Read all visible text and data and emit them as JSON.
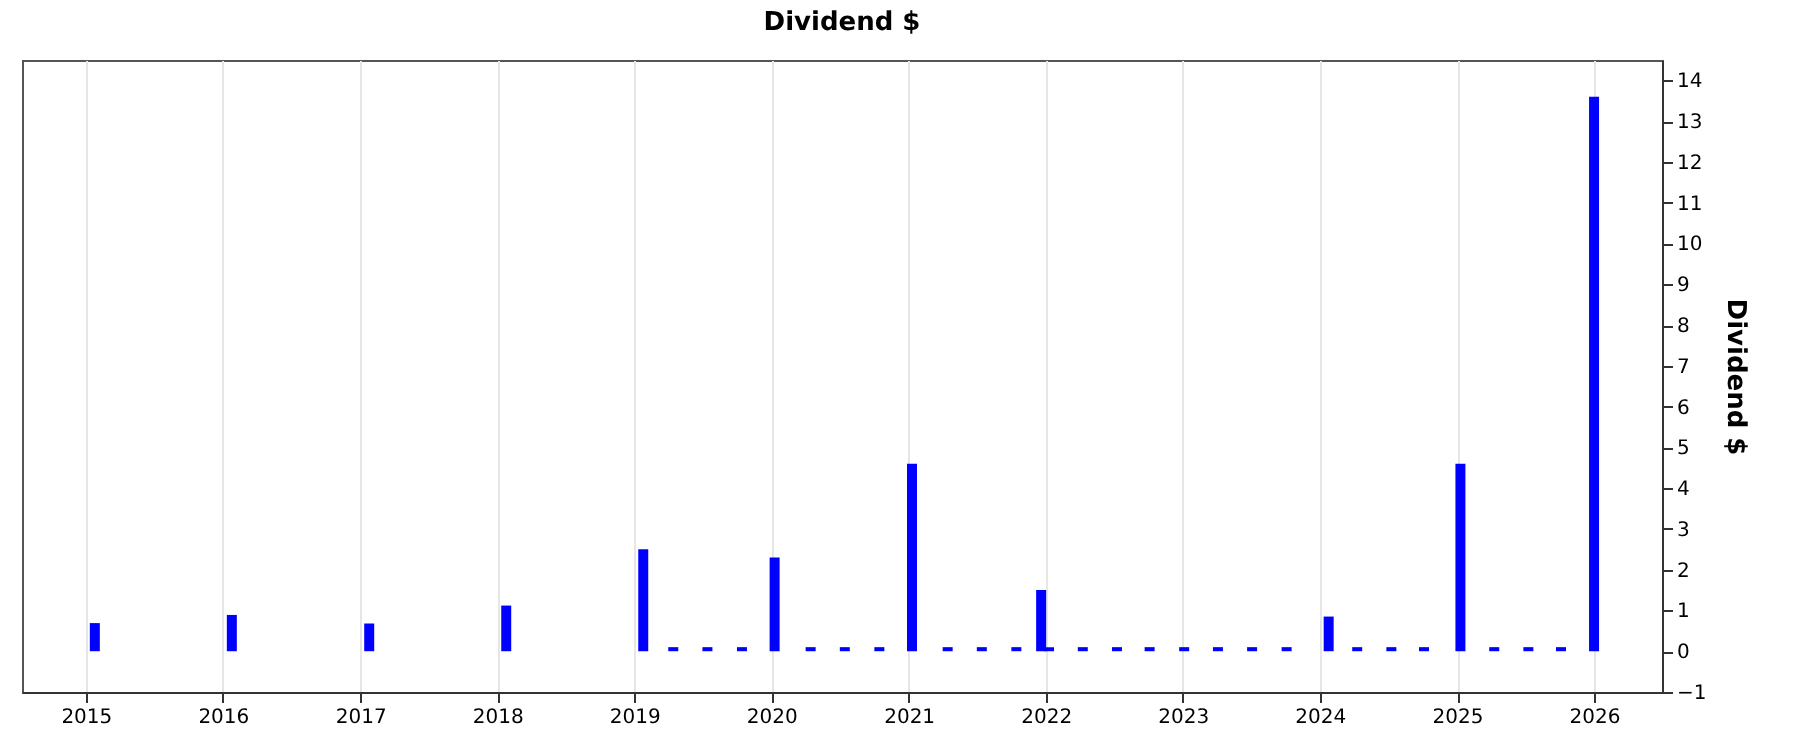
{
  "chart_data": {
    "type": "bar",
    "title": "Dividend $",
    "ylabel": "Dividend $",
    "x": [
      "2015-01-25",
      "2016-01-25",
      "2017-01-25",
      "2018-01-25",
      "2019-01-25",
      "2019-04-15",
      "2019-07-15",
      "2019-10-15",
      "2020-01-10",
      "2020-04-15",
      "2020-07-15",
      "2020-10-15",
      "2021-01-10",
      "2021-04-15",
      "2021-07-15",
      "2021-10-15",
      "2021-12-20",
      "2022-01-10",
      "2022-04-10",
      "2022-07-10",
      "2022-10-05",
      "2023-01-05",
      "2023-04-05",
      "2023-07-05",
      "2023-10-05",
      "2024-01-25",
      "2024-04-10",
      "2024-07-10",
      "2024-10-05",
      "2025-01-10",
      "2025-04-10",
      "2025-07-10",
      "2025-10-05",
      "2026-01-01"
    ],
    "values": [
      0.69,
      0.89,
      0.68,
      1.12,
      2.5,
      0.1,
      0.1,
      0.1,
      2.3,
      0.1,
      0.1,
      0.1,
      4.6,
      0.1,
      0.1,
      0.1,
      1.5,
      0.1,
      0.1,
      0.1,
      0.1,
      0.1,
      0.1,
      0.1,
      0.1,
      0.85,
      0.1,
      0.1,
      0.1,
      4.6,
      0.1,
      0.1,
      0.1,
      13.6
    ],
    "color": "#0000ff",
    "xlim": [
      "2014-07-15",
      "2026-07-01"
    ],
    "xticks": [
      "2015",
      "2016",
      "2017",
      "2018",
      "2019",
      "2020",
      "2021",
      "2022",
      "2023",
      "2024",
      "2025",
      "2026"
    ],
    "ylim": [
      -1,
      14.5
    ],
    "yticks": [
      -1,
      0,
      1,
      2,
      3,
      4,
      5,
      6,
      7,
      8,
      9,
      10,
      11,
      12,
      13,
      14
    ],
    "grid": "x"
  }
}
